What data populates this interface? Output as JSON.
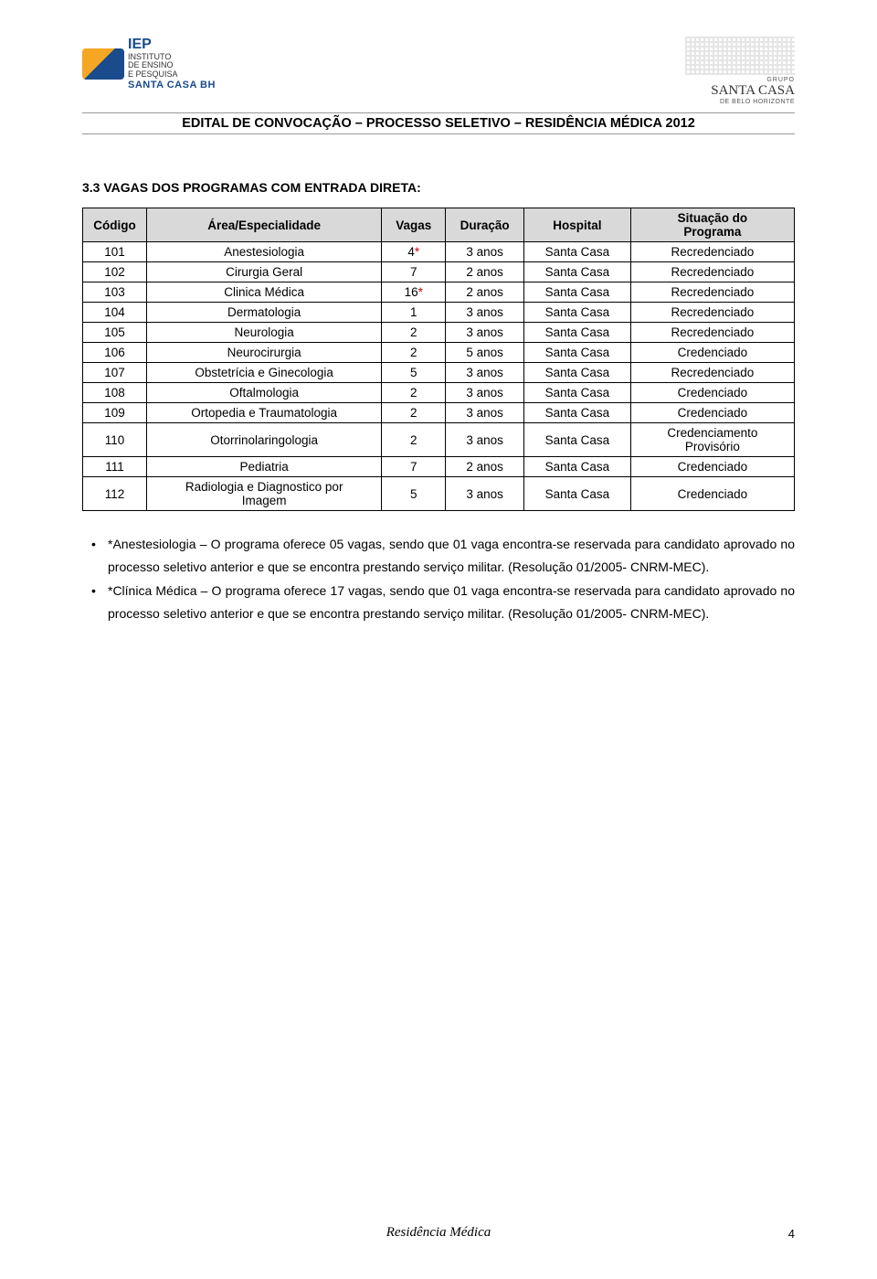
{
  "header": {
    "iep_abbrev": "IEP",
    "iep_lines": [
      "INSTITUTO",
      "DE ENSINO",
      "E PESQUISA"
    ],
    "santa_casa_left": "SANTA CASA BH",
    "grupo": "GRUPO",
    "santa_casa_right": "SANTA CASA",
    "bh": "DE BELO HORIZONTE",
    "banner": "EDITAL DE CONVOCAÇÃO – PROCESSO SELETIVO – RESIDÊNCIA MÉDICA 2012"
  },
  "section_title": "3.3 VAGAS DOS PROGRAMAS COM ENTRADA DIRETA:",
  "table": {
    "columns": [
      "Código",
      "Área/Especialidade",
      "Vagas",
      "Duração",
      "Hospital",
      "Situação do\nPrograma"
    ],
    "col_widths": [
      "9%",
      "33%",
      "9%",
      "11%",
      "15%",
      "23%"
    ],
    "rows": [
      {
        "codigo": "101",
        "area": "Anestesiologia",
        "vagas": "4",
        "ast": true,
        "dur": "3 anos",
        "hosp": "Santa Casa",
        "sit": "Recredenciado"
      },
      {
        "codigo": "102",
        "area": "Cirurgia Geral",
        "vagas": "7",
        "ast": false,
        "dur": "2 anos",
        "hosp": "Santa Casa",
        "sit": "Recredenciado"
      },
      {
        "codigo": "103",
        "area": "Clinica Médica",
        "vagas": "16",
        "ast": true,
        "dur": "2 anos",
        "hosp": "Santa Casa",
        "sit": "Recredenciado"
      },
      {
        "codigo": "104",
        "area": "Dermatologia",
        "vagas": "1",
        "ast": false,
        "dur": "3 anos",
        "hosp": "Santa Casa",
        "sit": "Recredenciado"
      },
      {
        "codigo": "105",
        "area": "Neurologia",
        "vagas": "2",
        "ast": false,
        "dur": "3 anos",
        "hosp": "Santa Casa",
        "sit": "Recredenciado"
      },
      {
        "codigo": "106",
        "area": "Neurocirurgia",
        "vagas": "2",
        "ast": false,
        "dur": "5 anos",
        "hosp": "Santa Casa",
        "sit": "Credenciado"
      },
      {
        "codigo": "107",
        "area": "Obstetrícia e Ginecologia",
        "vagas": "5",
        "ast": false,
        "dur": "3 anos",
        "hosp": "Santa Casa",
        "sit": "Recredenciado"
      },
      {
        "codigo": "108",
        "area": "Oftalmologia",
        "vagas": "2",
        "ast": false,
        "dur": "3 anos",
        "hosp": "Santa Casa",
        "sit": "Credenciado"
      },
      {
        "codigo": "109",
        "area": "Ortopedia e Traumatologia",
        "vagas": "2",
        "ast": false,
        "dur": "3 anos",
        "hosp": "Santa Casa",
        "sit": "Credenciado"
      },
      {
        "codigo": "110",
        "area": "Otorrinolaringologia",
        "vagas": "2",
        "ast": false,
        "dur": "3 anos",
        "hosp": "Santa Casa",
        "sit": "Credenciamento\nProvisório"
      },
      {
        "codigo": "111",
        "area": "Pediatria",
        "vagas": "7",
        "ast": false,
        "dur": "2 anos",
        "hosp": "Santa Casa",
        "sit": "Credenciado"
      },
      {
        "codigo": "112",
        "area": "Radiologia e Diagnostico por\nImagem",
        "vagas": "5",
        "ast": false,
        "dur": "3 anos",
        "hosp": "Santa Casa",
        "sit": "Credenciado"
      }
    ],
    "header_bg": "#d9d9d9",
    "border_color": "#000000",
    "ast_color": "#cc0000"
  },
  "bullets": [
    "*Anestesiologia – O programa oferece 05 vagas, sendo que 01 vaga encontra-se reservada para candidato aprovado no processo seletivo anterior e que se encontra prestando serviço militar. (Resolução 01/2005- CNRM-MEC).",
    "*Clínica Médica – O programa oferece 17 vagas, sendo que 01 vaga encontra-se reservada para candidato aprovado no processo seletivo anterior e que se encontra prestando serviço militar. (Resolução 01/2005- CNRM-MEC)."
  ],
  "footer": {
    "text": "Residência Médica",
    "page": "4"
  }
}
